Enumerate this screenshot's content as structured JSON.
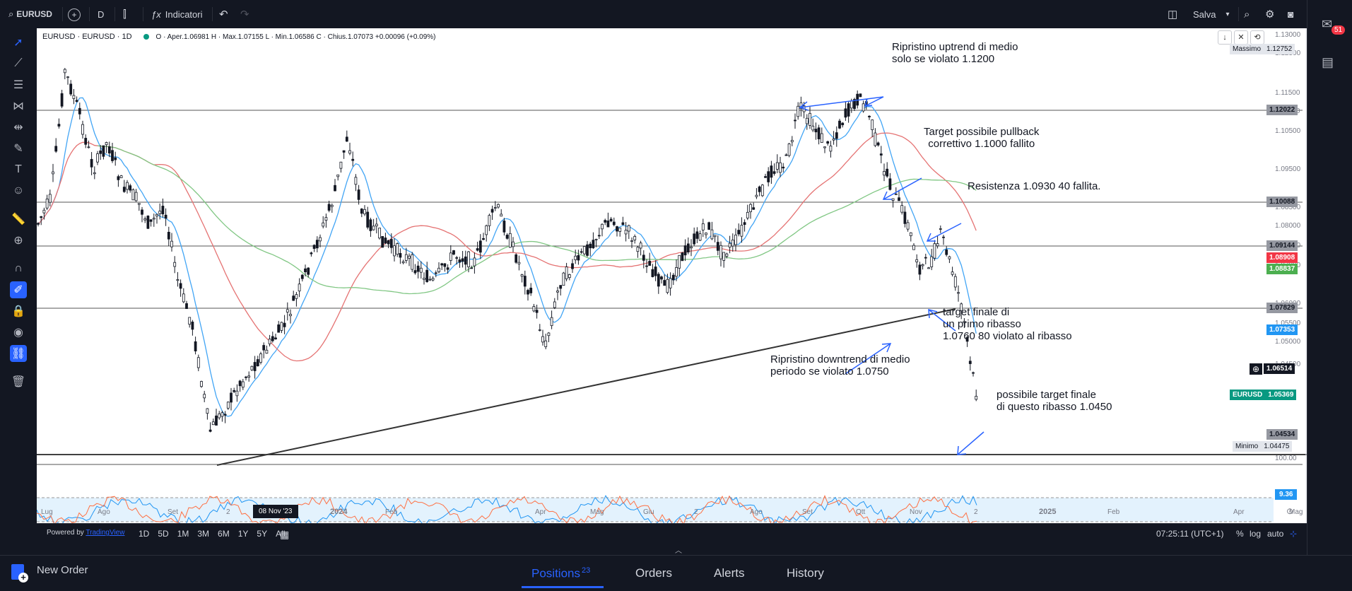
{
  "toolbar": {
    "symbol": "EURUSD",
    "interval": "D",
    "indicators_label": "Indicatori",
    "save_label": "Salva"
  },
  "chart": {
    "legend_symbol": "EURUSD · EURUSD · 1D",
    "legend_ohlc": "O · Aper.1.06981  H · Max.1.07155  L · Min.1.06586  C · Chius.1.07073  +0.00096 (+0.09%)",
    "badges": {
      "massimo_label": "Massimo",
      "massimo_value": "1.12752",
      "minimo_label": "Minimo",
      "minimo_value": "1.04475",
      "eurusd_label": "EURUSD",
      "eurusd_value": "1.05369",
      "crosshair_value": "1.06514",
      "level_1": "1.12022",
      "level_2": "1.10088",
      "level_3": "1.09144",
      "level_4": "1.08908",
      "level_5": "1.08837",
      "level_6": "1.07829",
      "level_7": "1.07353",
      "level_8": "1.04534",
      "osc_value": "9.36"
    },
    "price_ticks": [
      "1.13000",
      "1.12500",
      "1.11500",
      "1.11000",
      "1.10500",
      "1.09500",
      "1.08500",
      "1.08000",
      "1.07500",
      "1.07000",
      "1.06000",
      "1.05500",
      "1.05000",
      "1.04500"
    ],
    "osc_tick": "100.00",
    "time_labels": [
      "Lug",
      "Ago",
      "Set",
      "2",
      "2024",
      "Feb",
      "Apr",
      "Mag",
      "Giu",
      "2",
      "Ago",
      "Set",
      "Ott",
      "Nov",
      "2",
      "2025",
      "Feb",
      "Apr",
      "Mag"
    ],
    "date_hover": "08 Nov '23",
    "notes": {
      "n1_line1": "Ripristino uptrend di medio",
      "n1_line2": "solo se violato 1.1200",
      "n2_line1": "Target possibile pullback",
      "n2_line2": "correttivo 1.1000 fallito",
      "n3": "Resistenza 1.0930 40 fallita.",
      "n4_line1": "target finale di",
      "n4_line2": "un primo ribasso",
      "n4_line3": "1.0760 80 violato al ribasso",
      "n5_line1": "Ripristino downtrend di medio",
      "n5_line2": "periodo se violato 1.0750",
      "n6_line1": "possibile target finale",
      "n6_line2": "di questo ribasso 1.0450"
    }
  },
  "bottom_bar": {
    "powered_by": "Powered by",
    "tradingview": "TradingView",
    "ranges": [
      "1D",
      "5D",
      "1M",
      "3M",
      "6M",
      "1Y",
      "5Y",
      "All"
    ],
    "clock": "07:25:11 (UTC+1)",
    "pct": "%",
    "log": "log",
    "auto": "auto"
  },
  "panel": {
    "new_order": "New Order",
    "tabs": [
      {
        "label": "Positions",
        "badge": "23"
      },
      {
        "label": "Orders"
      },
      {
        "label": "Alerts"
      },
      {
        "label": "History"
      }
    ]
  },
  "notification_count": "51",
  "colors": {
    "accent": "#2962ff",
    "red": "#f23645",
    "green": "#4caf50",
    "ema_blue": "#42a5f5",
    "ema_red": "#e57373",
    "ema_green": "#81c784"
  }
}
